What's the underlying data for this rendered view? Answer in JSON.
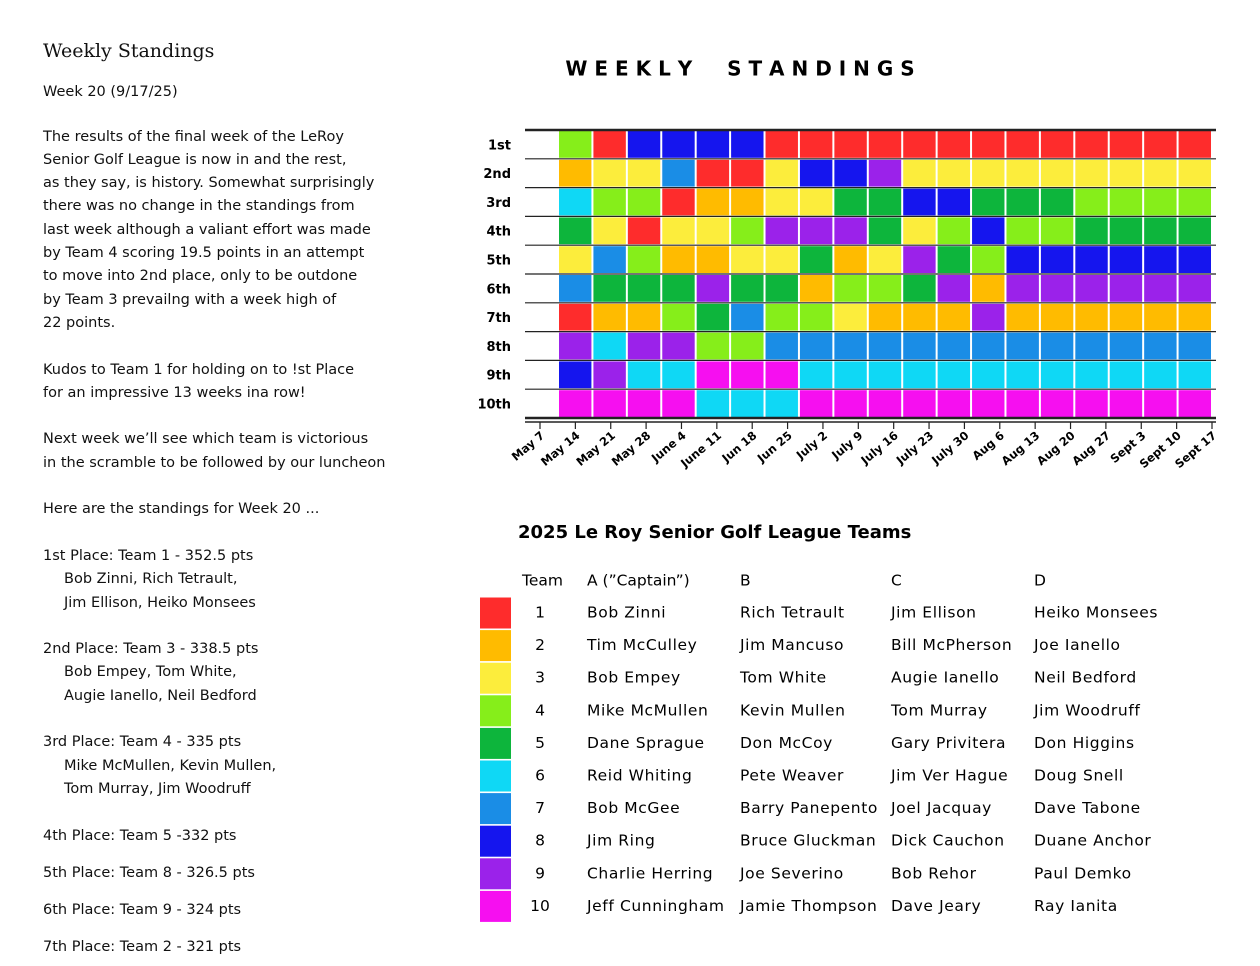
{
  "left": {
    "title": "Weekly Standings",
    "week_line": "Week 20 (9/17/25)",
    "paragraphs": [
      [
        "The results of the final week of the LeRoy",
        "Senior Golf League is now in and the rest,",
        "as they say, is history. Somewhat surprisingly",
        "there was no change in the standings from",
        "last week although a valiant effort was made",
        "by Team 4  scoring 19.5 points in an attempt",
        "to move into 2nd place, only to be outdone",
        "by Team 3 prevailng with a week high of",
        "22 points."
      ],
      [
        "Kudos to Team 1 for holding on to !st Place",
        "for an impressive 13 weeks ina row!"
      ],
      [
        "Next week we’ll see which team is victorious",
        "in the scramble to be followed by our luncheon"
      ],
      [
        "Here are the standings for Week 20 ..."
      ]
    ],
    "standings": [
      [
        "1st Place:  Team 1 - 352.5 pts",
        "Bob Zinni, Rich Tetrault,",
        "Jim Ellison, Heiko Monsees"
      ],
      [
        "2nd Place:  Team 3 - 338.5 pts",
        "Bob Empey, Tom White,",
        "Augie Ianello, Neil Bedford"
      ],
      [
        "3rd Place:  Team 4 - 335 pts",
        "Mike McMullen, Kevin Mullen,",
        "Tom Murray, Jim Woodruff"
      ],
      [
        "4th Place:  Team 5 -332 pts"
      ],
      [
        "5th Place:  Team 8 - 326.5 pts"
      ],
      [
        "6th Place:  Team 9 - 324 pts"
      ],
      [
        "7th Place:  Team 2 - 321 pts"
      ]
    ]
  },
  "chart": {
    "title": "W E E K L Y     S T A N D I N G S",
    "row_labels": [
      "1st",
      "2nd",
      "3rd",
      "4th",
      "5th",
      "6th",
      "7th",
      "8th",
      "9th",
      "10th"
    ],
    "date_labels": [
      "May 7",
      "May 14",
      "May 21",
      "May 28",
      "June 4",
      "June 11",
      "Jun 18",
      "Jun 25",
      "July 2",
      "July 9",
      "July 16",
      "July 23",
      "July 30",
      "Aug 6",
      "Aug 13",
      "Aug 20",
      "Aug 27",
      "Sept 3",
      "Sept 10",
      "Sept 17"
    ],
    "weeks": [
      [
        4,
        2,
        6,
        5,
        3,
        7,
        1,
        9,
        8,
        10
      ],
      [
        1,
        3,
        4,
        3,
        7,
        5,
        2,
        6,
        9,
        10
      ],
      [
        8,
        3,
        4,
        1,
        4,
        5,
        2,
        9,
        6,
        10
      ],
      [
        8,
        7,
        1,
        3,
        2,
        5,
        4,
        9,
        6,
        10
      ],
      [
        8,
        1,
        2,
        3,
        2,
        9,
        5,
        4,
        10,
        6
      ],
      [
        8,
        1,
        2,
        4,
        3,
        5,
        7,
        4,
        10,
        6
      ],
      [
        1,
        3,
        3,
        9,
        3,
        5,
        4,
        7,
        10,
        6
      ],
      [
        1,
        8,
        3,
        9,
        5,
        2,
        4,
        7,
        6,
        10
      ],
      [
        1,
        8,
        5,
        9,
        2,
        4,
        3,
        7,
        6,
        10
      ],
      [
        1,
        9,
        5,
        5,
        3,
        4,
        2,
        7,
        6,
        10
      ],
      [
        1,
        3,
        8,
        3,
        9,
        5,
        2,
        7,
        6,
        10
      ],
      [
        1,
        3,
        8,
        4,
        5,
        9,
        2,
        7,
        6,
        10
      ],
      [
        1,
        3,
        5,
        8,
        4,
        2,
        9,
        7,
        6,
        10
      ],
      [
        1,
        3,
        5,
        4,
        8,
        9,
        2,
        7,
        6,
        10
      ],
      [
        1,
        3,
        5,
        4,
        8,
        9,
        2,
        7,
        6,
        10
      ],
      [
        1,
        3,
        4,
        5,
        8,
        9,
        2,
        7,
        6,
        10
      ],
      [
        1,
        3,
        4,
        5,
        8,
        9,
        2,
        7,
        6,
        10
      ],
      [
        1,
        3,
        4,
        5,
        8,
        9,
        2,
        7,
        6,
        10
      ],
      [
        1,
        3,
        4,
        5,
        8,
        9,
        2,
        7,
        6,
        10
      ]
    ]
  },
  "teams": {
    "title": "2025 Le Roy  Senior Golf League Teams",
    "header": [
      "Team",
      "A (”Captain”)",
      "B",
      "C",
      "D"
    ],
    "rows": [
      {
        "color": "#fe2c2c",
        "cells": [
          "1",
          "Bob Zinni",
          "Rich Tetrault",
          "Jim Ellison",
          "Heiko Monsees"
        ]
      },
      {
        "color": "#ffbb00",
        "cells": [
          "2",
          "Tim McCulley",
          "Jim Mancuso",
          "Bill McPherson",
          "Joe Ianello"
        ]
      },
      {
        "color": "#fced3c",
        "cells": [
          "3",
          "Bob Empey",
          "Tom White",
          "Augie Ianello",
          "Neil Bedford"
        ]
      },
      {
        "color": "#86ee1a",
        "cells": [
          "4",
          "Mike McMullen",
          "Kevin Mullen",
          "Tom Murray",
          "Jim Woodruff"
        ]
      },
      {
        "color": "#0db53c",
        "cells": [
          "5",
          "Dane Sprague",
          "Don McCoy",
          "Gary Privitera",
          "Don Higgins"
        ]
      },
      {
        "color": "#0fd8f5",
        "cells": [
          "6",
          "Reid Whiting",
          "Pete Weaver",
          "Jim Ver Hague",
          "Doug Snell"
        ]
      },
      {
        "color": "#1a8de6",
        "cells": [
          "7",
          "Bob McGee",
          "Barry Panepento",
          "Joel Jacquay",
          "Dave Tabone"
        ]
      },
      {
        "color": "#1515ee",
        "cells": [
          "8",
          "Jim Ring",
          "Bruce Gluckman",
          "Dick Cauchon",
          "Duane Anchor"
        ]
      },
      {
        "color": "#9b22ea",
        "cells": [
          "9",
          "Charlie Herring",
          "Joe Severino",
          "Bob Rehor",
          "Paul Demko"
        ]
      },
      {
        "color": "#f60ff0",
        "cells": [
          "10",
          "Jeff Cunningham",
          "Jamie Thompson",
          "Dave Jeary",
          "Ray Ianita"
        ]
      }
    ]
  }
}
